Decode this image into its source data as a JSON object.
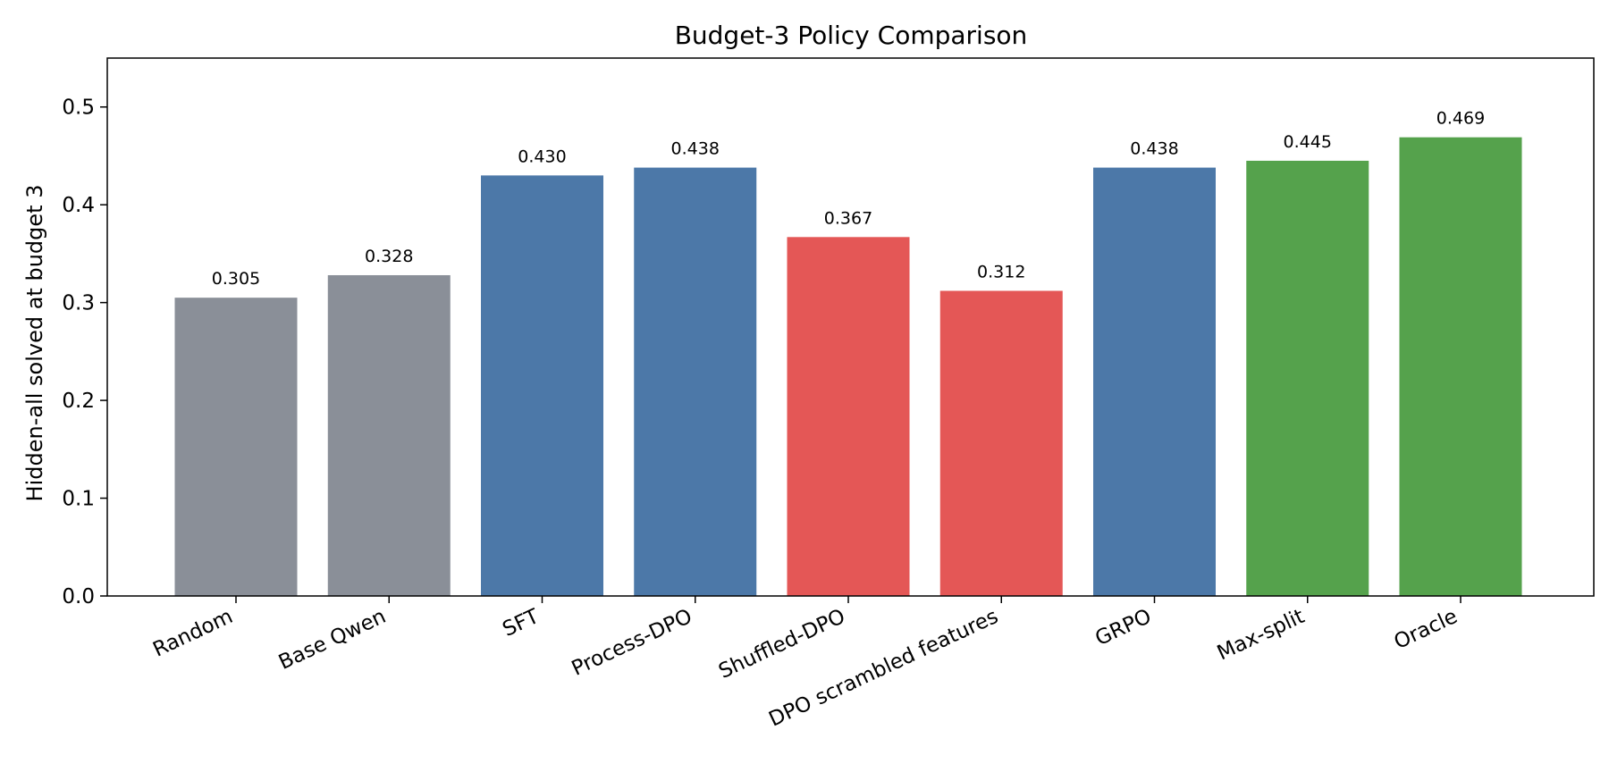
{
  "chart_data": {
    "type": "bar",
    "title": "Budget-3 Policy Comparison",
    "xlabel": "",
    "ylabel": "Hidden-all solved at budget 3",
    "ylim": [
      0,
      0.55
    ],
    "yticks": [
      0.0,
      0.1,
      0.2,
      0.3,
      0.4,
      0.5
    ],
    "ytick_labels": [
      "0.0",
      "0.1",
      "0.2",
      "0.3",
      "0.4",
      "0.5"
    ],
    "grid": false,
    "legend": "none",
    "categories": [
      "Random",
      "Base Qwen",
      "SFT",
      "Process-DPO",
      "Shuffled-DPO",
      "DPO scrambled features",
      "GRPO",
      "Max-split",
      "Oracle"
    ],
    "values": [
      0.305,
      0.328,
      0.43,
      0.438,
      0.367,
      0.312,
      0.438,
      0.445,
      0.469
    ],
    "value_labels": [
      "0.305",
      "0.328",
      "0.430",
      "0.438",
      "0.367",
      "0.312",
      "0.438",
      "0.445",
      "0.469"
    ],
    "bar_colors": [
      "#8a8f98",
      "#8a8f98",
      "#4c78a8",
      "#4c78a8",
      "#e45756",
      "#e45756",
      "#4c78a8",
      "#55a24c",
      "#55a24c"
    ]
  }
}
